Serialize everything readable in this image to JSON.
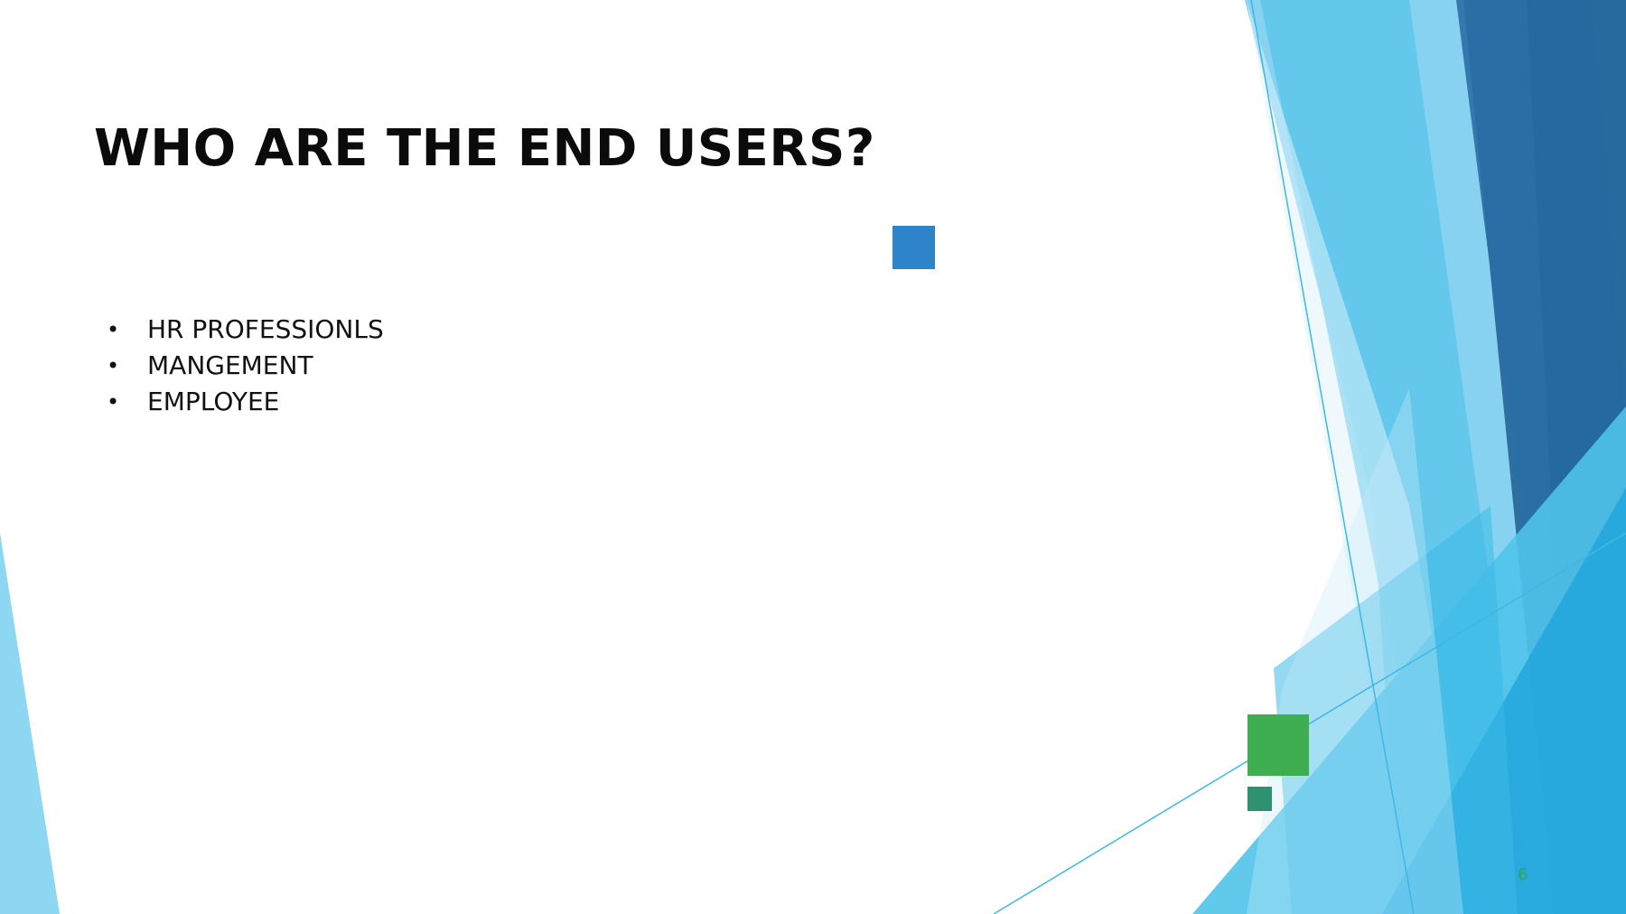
{
  "slide": {
    "title": "WHO ARE THE END USERS?",
    "bullets": [
      {
        "bullet": "•",
        "text": "HR PROFESSIONLS"
      },
      {
        "bullet": "•",
        "text": "MANGEMENT"
      },
      {
        "bullet": "•",
        "text": "EMPLOYEE"
      }
    ],
    "page_number": "6"
  },
  "colors": {
    "background": "#ffffff",
    "title_text": "#0b0b0b",
    "body_text": "#111111",
    "accent_blue_square": "#2e84c8",
    "accent_green_square": "#3fae50",
    "accent_teal_square": "#2e9271",
    "page_number": "#2ea35a",
    "facet_light": "#7fd0ef",
    "facet_mid": "#3bbce8",
    "facet_dark": "#2a6f9f"
  }
}
